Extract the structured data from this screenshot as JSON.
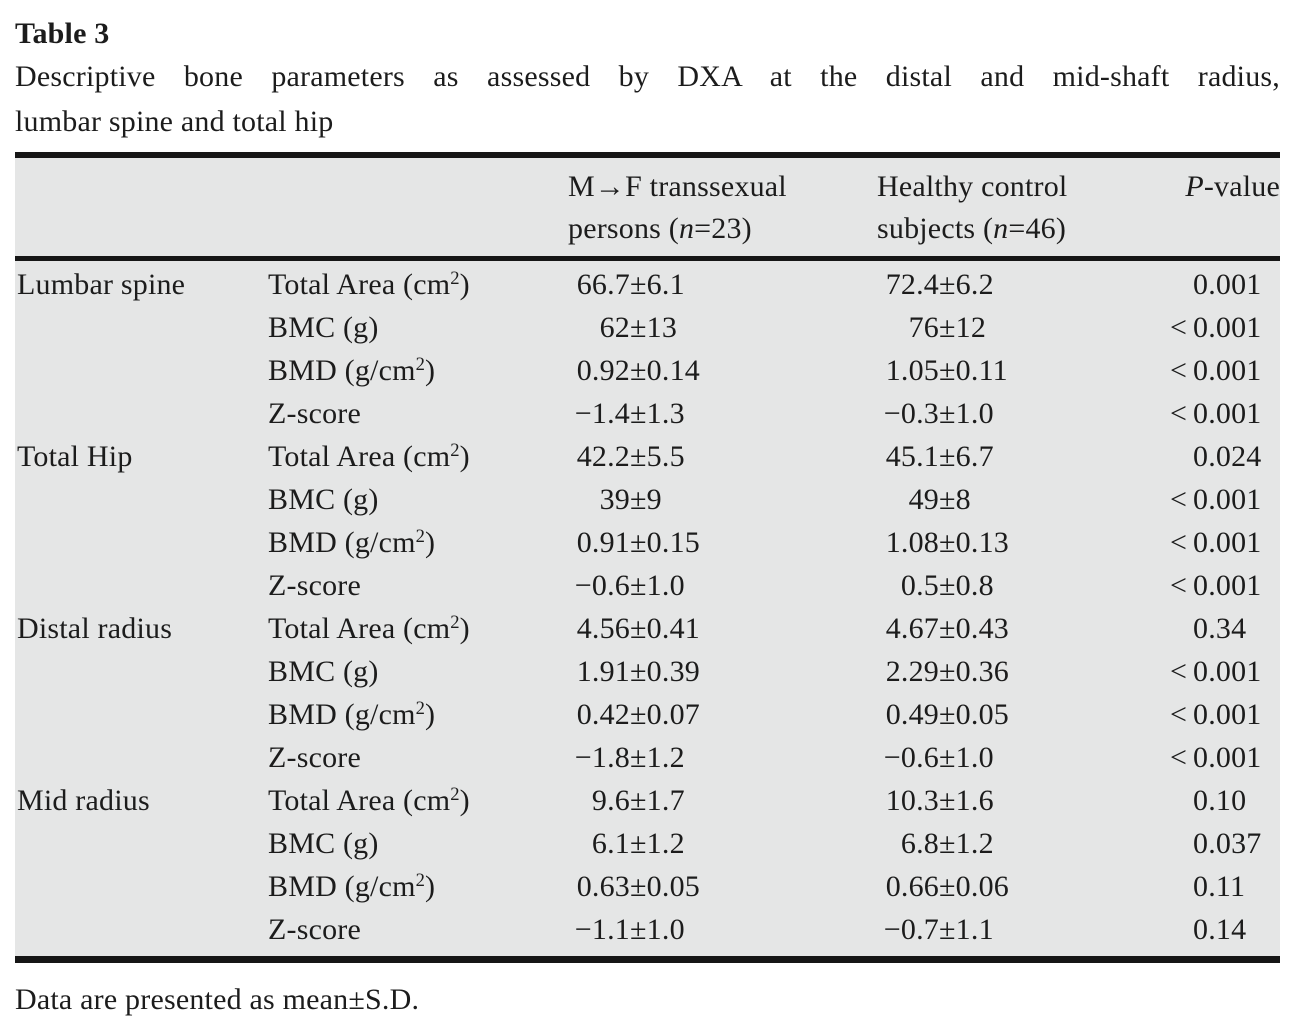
{
  "page": {
    "title": "Table 3",
    "caption_line1": "Descriptive bone parameters as assessed by DXA at the distal and mid-shaft radius,",
    "caption_line2": "lumbar spine and total hip",
    "footnote": "Data are presented as mean±S.D."
  },
  "table": {
    "header": {
      "site": "",
      "parameter": "",
      "mf_line1": "M→F transsexual",
      "mf_line2": "persons (*n*=23)",
      "hc_line1": "Healthy control",
      "hc_line2": "subjects (*n*=46)",
      "p": "*P*-value"
    },
    "groups": [
      {
        "site": "Lumbar spine",
        "rows": [
          {
            "param": "Total Area (cm^2)",
            "mf": "66.7±6.1",
            "hc": "72.4±6.2",
            "p": "0.001"
          },
          {
            "param": "BMC (g)",
            "mf": "62±13",
            "hc": "76±12",
            "p": "<0.001"
          },
          {
            "param": "BMD (g/cm^2)",
            "mf": "0.92±0.14",
            "hc": "1.05±0.11",
            "p": "<0.001"
          },
          {
            "param": "Z-score",
            "mf": "−1.4±1.3",
            "hc": "−0.3±1.0",
            "p": "<0.001"
          }
        ]
      },
      {
        "site": "Total Hip",
        "rows": [
          {
            "param": "Total Area (cm^2)",
            "mf": "42.2±5.5",
            "hc": "45.1±6.7",
            "p": "0.024"
          },
          {
            "param": "BMC (g)",
            "mf": "39±9",
            "hc": "49±8",
            "p": "<0.001"
          },
          {
            "param": "BMD (g/cm^2)",
            "mf": "0.91±0.15",
            "hc": "1.08±0.13",
            "p": "<0.001"
          },
          {
            "param": "Z-score",
            "mf": "−0.6±1.0",
            "hc": "0.5±0.8",
            "p": "<0.001"
          }
        ]
      },
      {
        "site": "Distal radius",
        "rows": [
          {
            "param": "Total Area (cm^2)",
            "mf": "4.56±0.41",
            "hc": "4.67±0.43",
            "p": "0.34"
          },
          {
            "param": "BMC (g)",
            "mf": "1.91±0.39",
            "hc": "2.29±0.36",
            "p": "<0.001"
          },
          {
            "param": "BMD (g/cm^2)",
            "mf": "0.42±0.07",
            "hc": "0.49±0.05",
            "p": "<0.001"
          },
          {
            "param": "Z-score",
            "mf": "−1.8±1.2",
            "hc": "−0.6±1.0",
            "p": "<0.001"
          }
        ]
      },
      {
        "site": "Mid radius",
        "rows": [
          {
            "param": "Total Area (cm^2)",
            "mf": "9.6±1.7",
            "hc": "10.3±1.6",
            "p": "0.10"
          },
          {
            "param": "BMC (g)",
            "mf": "6.1±1.2",
            "hc": "6.8±1.2",
            "p": "0.037"
          },
          {
            "param": "BMD (g/cm^2)",
            "mf": "0.63±0.05",
            "hc": "0.66±0.06",
            "p": "0.11"
          },
          {
            "param": "Z-score",
            "mf": "−1.1±1.0",
            "hc": "−0.7±1.1",
            "p": "0.14"
          }
        ]
      }
    ]
  },
  "colors": {
    "table_bg": "#e5e6e6",
    "rule": "#161616",
    "text": "#1c1c1c"
  }
}
